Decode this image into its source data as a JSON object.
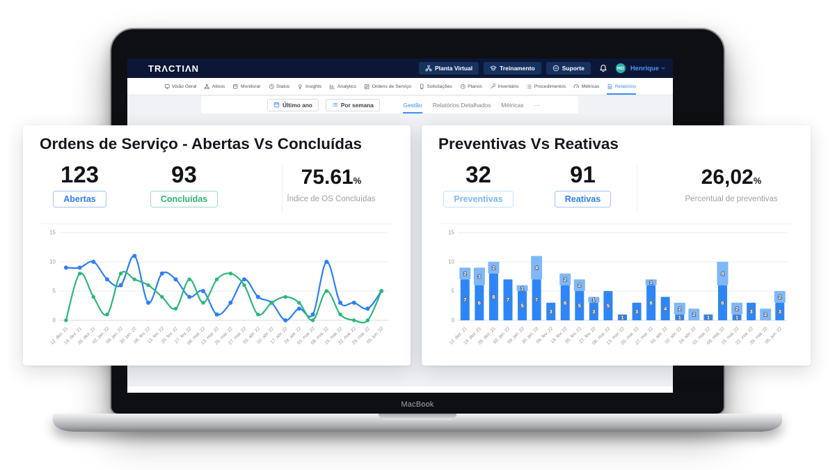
{
  "device": {
    "label": "MacBook"
  },
  "navbar": {
    "logo": "TRΛCTIΛN",
    "actions": [
      {
        "label": "Planta Virtual",
        "icon": "sitemap"
      },
      {
        "label": "Treinamento",
        "icon": "graduation"
      },
      {
        "label": "Suporte",
        "icon": "chat"
      }
    ],
    "user": {
      "initials": "HO",
      "name": "Henrique"
    }
  },
  "nav_tabs": [
    {
      "label": "Visão Geral",
      "icon": "monitor",
      "active": false
    },
    {
      "label": "Ativos",
      "icon": "nodes",
      "active": false
    },
    {
      "label": "Monitorar",
      "icon": "box",
      "active": false
    },
    {
      "label": "Status",
      "icon": "clock",
      "active": false
    },
    {
      "label": "Insights",
      "icon": "bulb",
      "active": false
    },
    {
      "label": "Analytics",
      "icon": "chart",
      "active": false
    },
    {
      "label": "Ordens de Serviço",
      "icon": "edit",
      "active": false
    },
    {
      "label": "Solicitações",
      "icon": "phone",
      "active": false
    },
    {
      "label": "Planos",
      "icon": "clock",
      "active": false
    },
    {
      "label": "Inventário",
      "icon": "wrench",
      "active": false
    },
    {
      "label": "Procedimentos",
      "icon": "list",
      "active": false
    },
    {
      "label": "Métricas",
      "icon": "gauge",
      "active": false
    },
    {
      "label": "Relatórios",
      "icon": "doc",
      "active": true
    }
  ],
  "filter_bar": {
    "buttons": [
      {
        "label": "Último ano",
        "icon": "calendar"
      },
      {
        "label": "Por semana",
        "icon": "rows"
      }
    ],
    "tabs": [
      {
        "label": "Gestão",
        "active": true
      },
      {
        "label": "Relatórios Detalhados",
        "active": false
      },
      {
        "label": "Métricas",
        "active": false
      },
      {
        "label": "···",
        "active": false
      }
    ]
  },
  "cards": [
    {
      "title": "Ordens de Serviço - Abertas Vs Concluídas",
      "stats": [
        {
          "value": "123",
          "label": "Abertas",
          "color": "#2e7ff5"
        },
        {
          "value": "93",
          "label": "Concluídas",
          "color": "#2bb673"
        }
      ],
      "percent": {
        "value": "75.61",
        "unit": "%",
        "caption": "Índice de OS Concluídas"
      }
    },
    {
      "title": "Preventivas Vs Reativas",
      "stats": [
        {
          "value": "32",
          "label": "Preventivas",
          "color": "#7db7f8"
        },
        {
          "value": "91",
          "label": "Reativas",
          "color": "#2e7ff5"
        }
      ],
      "percent": {
        "value": "26,02",
        "unit": "%",
        "caption": "Percentual de preventivas"
      }
    }
  ],
  "chart_data": [
    {
      "type": "line",
      "title": "Ordens de Serviço - Abertas Vs Concluídas",
      "categories": [
        "12. dez. 21",
        "19. dez. 21",
        "26. dez. 21",
        "02. jan. 22",
        "09. jan. 22",
        "30. jan. 22",
        "06. fev. 22",
        "13. fev. 22",
        "20. fev. 22",
        "27. fev. 22",
        "06. mar. 22",
        "13. mar. 22",
        "20. mar. 22",
        "27. mar. 22",
        "03. abr. 22",
        "10. abr. 22",
        "17. abr. 22",
        "24. abr. 22",
        "01. mai. 22",
        "08. mai. 22",
        "15. mai. 22",
        "22. mai. 22",
        "29. mai. 22",
        "05. jun. 22"
      ],
      "series": [
        {
          "name": "Abertas",
          "color": "#2b7ff5",
          "values": [
            9,
            9,
            10,
            7,
            6,
            11,
            3,
            8,
            7,
            4,
            5,
            1,
            3,
            7,
            4,
            3,
            0,
            2,
            1,
            10,
            3,
            3,
            2,
            5
          ]
        },
        {
          "name": "Concluídas",
          "color": "#2cb878",
          "values": [
            0,
            8,
            4,
            1,
            8,
            7,
            6,
            4,
            2,
            7,
            3,
            7,
            8,
            6,
            1,
            3,
            4,
            3,
            0,
            5,
            1,
            0,
            0,
            5
          ]
        }
      ],
      "ylim": [
        0,
        15
      ],
      "yticks": [
        0,
        5,
        10,
        15
      ],
      "grid": true,
      "legend": "none"
    },
    {
      "type": "bar",
      "stacked": true,
      "title": "Preventivas Vs Reativas",
      "categories": [
        "12. dez. 21",
        "19. dez. 21",
        "26. dez. 21",
        "02. jan. 22",
        "09. jan. 22",
        "30. jan. 22",
        "06. fev. 22",
        "13. fev. 22",
        "20. fev. 22",
        "27. fev. 22",
        "06. mar. 22",
        "13. mar. 22",
        "20. mar. 22",
        "27. mar. 22",
        "03. abr. 22",
        "10. abr. 22",
        "24. abr. 22",
        "01. mai. 22",
        "08. mai. 22",
        "15. mai. 22",
        "22. mai. 22",
        "29. mai. 22",
        "05. jun. 22"
      ],
      "series": [
        {
          "name": "Reativas",
          "color": "#2e86f6",
          "values": [
            7,
            6,
            8,
            7,
            5,
            7,
            3,
            6,
            5,
            3,
            5,
            1,
            3,
            6,
            4,
            1,
            0,
            1,
            6,
            1,
            3,
            0,
            3
          ]
        },
        {
          "name": "Preventivas",
          "color": "#7fb8f9",
          "values": [
            2,
            3,
            2,
            0,
            1,
            4,
            0,
            2,
            2,
            1,
            0,
            0,
            0,
            1,
            0,
            2,
            2,
            0,
            4,
            2,
            0,
            2,
            2
          ]
        }
      ],
      "ylim": [
        0,
        15
      ],
      "yticks": [
        0,
        5,
        10,
        15
      ],
      "grid": true,
      "legend": "none"
    }
  ]
}
